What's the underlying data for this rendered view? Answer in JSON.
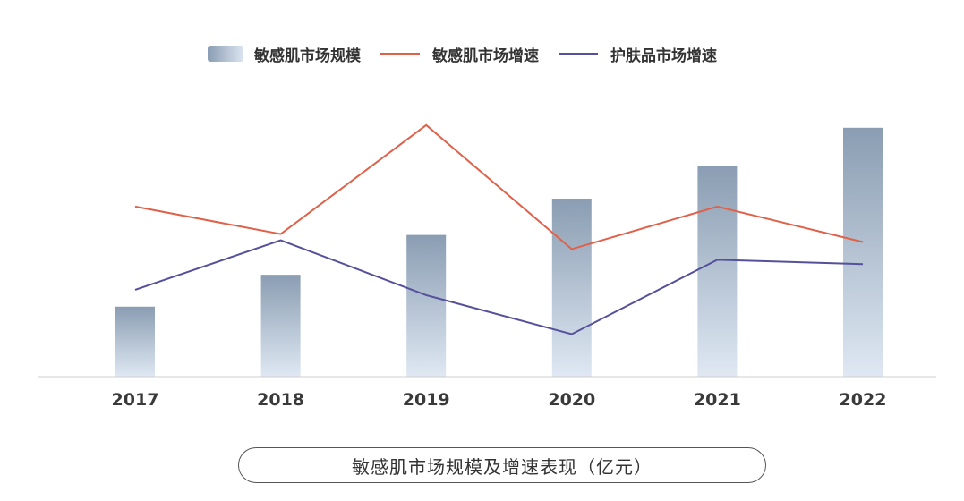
{
  "chart_data": {
    "type": "bar",
    "categories": [
      "2017",
      "2018",
      "2019",
      "2020",
      "2021",
      "2022"
    ],
    "series": [
      {
        "name": "敏感肌市场规模",
        "kind": "bar",
        "values": [
          79,
          115,
          160,
          201,
          238,
          281
        ],
        "color": "#8a9db2"
      },
      {
        "name": "敏感肌市场增速",
        "kind": "line",
        "values": [
          192,
          161,
          284,
          144,
          192,
          152
        ],
        "color": "#e0614a"
      },
      {
        "name": "护肤品市场增速",
        "kind": "line",
        "values": [
          98,
          154,
          92,
          48,
          132,
          127
        ],
        "color": "#55509a"
      }
    ],
    "title": "",
    "xlabel": "",
    "ylabel": "",
    "ylim": [
      0,
      300
    ],
    "grid": false,
    "legend_position": "top-center"
  },
  "legend": {
    "items": [
      {
        "label": "敏感肌市场规模"
      },
      {
        "label": "敏感肌市场增速"
      },
      {
        "label": "护肤品市场增速"
      }
    ]
  },
  "caption": "敏感肌市场规模及增速表现（亿元）"
}
